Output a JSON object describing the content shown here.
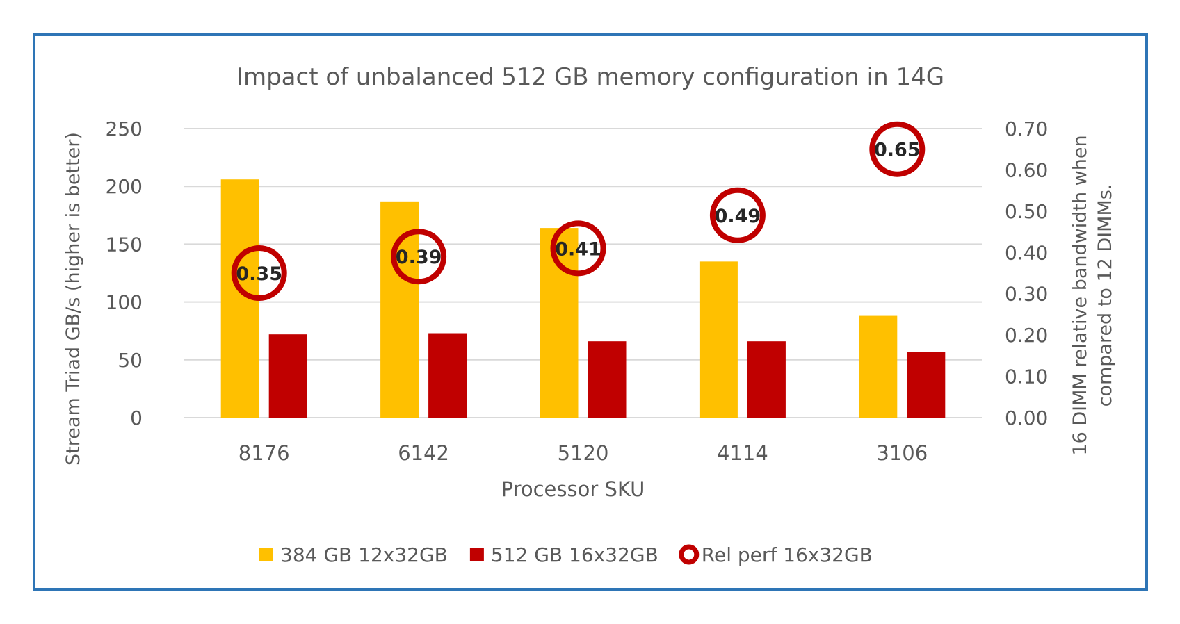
{
  "chart_data": {
    "type": "bar",
    "title": "Impact of unbalanced 512 GB memory configuration in 14G",
    "xlabel": "Processor SKU",
    "ylabel": "Stream Triad GB/s (higher is better)",
    "y2label_line1": "16 DIMM relative bandwidth when",
    "y2label_line2": "compared to 12 DIMMs.",
    "categories": [
      "8176",
      "6142",
      "5120",
      "4114",
      "3106"
    ],
    "ylim": [
      0,
      250
    ],
    "yticks": [
      "0",
      "50",
      "100",
      "150",
      "200",
      "250"
    ],
    "y2lim": [
      0,
      0.7
    ],
    "y2ticks": [
      "0.00",
      "0.10",
      "0.20",
      "0.30",
      "0.40",
      "0.50",
      "0.60",
      "0.70"
    ],
    "series": [
      {
        "name": "384 GB 12x32GB",
        "kind": "bar",
        "axis": "left",
        "color": "#FFC000",
        "values": [
          206,
          187,
          164,
          135,
          88
        ]
      },
      {
        "name": "512 GB 16x32GB",
        "kind": "bar",
        "axis": "left",
        "color": "#C00000",
        "values": [
          72,
          73,
          66,
          66,
          57
        ]
      },
      {
        "name": "Rel perf 16x32GB",
        "kind": "marker",
        "axis": "right",
        "color": "#C00000",
        "values": [
          0.35,
          0.39,
          0.41,
          0.49,
          0.65
        ],
        "labels": [
          "0.35",
          "0.39",
          "0.41",
          "0.49",
          "0.65"
        ]
      }
    ],
    "grid": true,
    "legend_position": "bottom",
    "colors": {
      "frame": "#2E75B6",
      "axis_text": "#595959",
      "gridline": "#D9D9D9",
      "marker_label": "#262626"
    }
  }
}
